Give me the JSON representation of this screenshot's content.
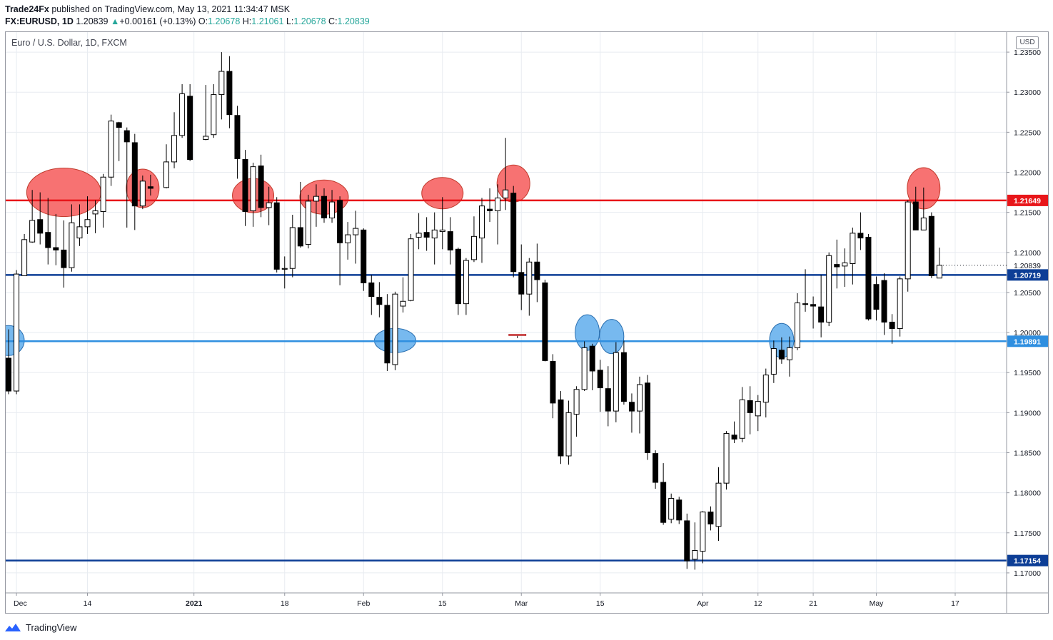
{
  "header": {
    "publisher": "Trade24Fx",
    "published_text": " published on TradingView.com, May 13, 2021 11:34:47 MSK",
    "symbol": "FX:EURUSD, 1D",
    "last": "1.20839",
    "arrow": "▲",
    "change": "+0.00161 (+0.13%)",
    "o_label": "O:",
    "o_value": "1.20678",
    "h_label": "H:",
    "h_value": "1.21061",
    "l_label": "L:",
    "l_value": "1.20678",
    "c_label": "C:",
    "c_value": "1.20839"
  },
  "chart_title": "Euro / U.S. Dollar, 1D, FXCM",
  "currency_badge": "USD",
  "footer": {
    "brand": "TradingView",
    "logo_icon": "tradingview-logo-icon"
  },
  "colors": {
    "bull_body": "#ffffff",
    "bear_body": "#000000",
    "wick": "#000000",
    "resistance_line": "#e8161a",
    "support_line_blue": "#2f8fe0",
    "support_line_navy": "#0d3e96",
    "price_text_up": "#26a69a",
    "grid": "#e8ecf1",
    "red_ellipse": "#f77272",
    "blue_ellipse": "#77b9ef"
  },
  "chart_data": {
    "type": "candlestick",
    "symbol": "EURUSD",
    "timeframe": "1D",
    "ylim": [
      1.1675,
      1.2375
    ],
    "y_ticks": [
      "1.23500",
      "1.23000",
      "1.22500",
      "1.22000",
      "1.21500",
      "1.21000",
      "1.20500",
      "1.20000",
      "1.19500",
      "1.19000",
      "1.18500",
      "1.18000",
      "1.17500",
      "1.17000"
    ],
    "x_ticks": [
      "Dec",
      "14",
      "2021",
      "18",
      "Feb",
      "15",
      "Mar",
      "15",
      "Apr",
      "12",
      "21",
      "May",
      "17"
    ],
    "candles": [
      {
        "date": "2020-11-30",
        "o": 1.1968,
        "h": 1.2004,
        "l": 1.1923,
        "c": 1.1927
      },
      {
        "date": "2020-12-01",
        "o": 1.1927,
        "h": 1.2078,
        "l": 1.1923,
        "c": 1.2073
      },
      {
        "date": "2020-12-02",
        "o": 1.2071,
        "h": 1.2123,
        "l": 1.2071,
        "c": 1.2116
      },
      {
        "date": "2020-12-03",
        "o": 1.2113,
        "h": 1.2178,
        "l": 1.2112,
        "c": 1.214
      },
      {
        "date": "2020-12-04",
        "o": 1.2141,
        "h": 1.2175,
        "l": 1.211,
        "c": 1.2124
      },
      {
        "date": "2020-12-07",
        "o": 1.2125,
        "h": 1.2168,
        "l": 1.2085,
        "c": 1.2106
      },
      {
        "date": "2020-12-08",
        "o": 1.2106,
        "h": 1.2148,
        "l": 1.2084,
        "c": 1.2103
      },
      {
        "date": "2020-12-09",
        "o": 1.2103,
        "h": 1.214,
        "l": 1.2056,
        "c": 1.2081
      },
      {
        "date": "2020-12-10",
        "o": 1.2081,
        "h": 1.216,
        "l": 1.2076,
        "c": 1.2137
      },
      {
        "date": "2020-12-11",
        "o": 1.2118,
        "h": 1.216,
        "l": 1.2108,
        "c": 1.2132
      },
      {
        "date": "2020-12-14",
        "o": 1.2132,
        "h": 1.217,
        "l": 1.2123,
        "c": 1.2141
      },
      {
        "date": "2020-12-15",
        "o": 1.2148,
        "h": 1.2165,
        "l": 1.2124,
        "c": 1.2152
      },
      {
        "date": "2020-12-16",
        "o": 1.2151,
        "h": 1.2198,
        "l": 1.2131,
        "c": 1.2194
      },
      {
        "date": "2020-12-17",
        "o": 1.2194,
        "h": 1.2272,
        "l": 1.2183,
        "c": 1.2264
      },
      {
        "date": "2020-12-18",
        "o": 1.2262,
        "h": 1.2263,
        "l": 1.2214,
        "c": 1.2256
      },
      {
        "date": "2020-12-21",
        "o": 1.2252,
        "h": 1.2256,
        "l": 1.2131,
        "c": 1.2238
      },
      {
        "date": "2020-12-22",
        "o": 1.2237,
        "h": 1.2248,
        "l": 1.2128,
        "c": 1.2158
      },
      {
        "date": "2020-12-23",
        "o": 1.2158,
        "h": 1.2196,
        "l": 1.2154,
        "c": 1.2189
      },
      {
        "date": "2020-12-24",
        "o": 1.2182,
        "h": 1.2197,
        "l": 1.2171,
        "c": 1.218
      },
      {
        "date": "2020-12-28",
        "o": 1.2181,
        "h": 1.2235,
        "l": 1.218,
        "c": 1.2213
      },
      {
        "date": "2020-12-29",
        "o": 1.2213,
        "h": 1.2275,
        "l": 1.2205,
        "c": 1.2246
      },
      {
        "date": "2020-12-30",
        "o": 1.2246,
        "h": 1.231,
        "l": 1.2243,
        "c": 1.2298
      },
      {
        "date": "2020-12-31",
        "o": 1.2295,
        "h": 1.231,
        "l": 1.2214,
        "c": 1.2216
      },
      {
        "date": "2021-01-04",
        "o": 1.2241,
        "h": 1.2309,
        "l": 1.224,
        "c": 1.2245
      },
      {
        "date": "2021-01-05",
        "o": 1.2247,
        "h": 1.231,
        "l": 1.2243,
        "c": 1.2297
      },
      {
        "date": "2021-01-06",
        "o": 1.2297,
        "h": 1.235,
        "l": 1.2266,
        "c": 1.2326
      },
      {
        "date": "2021-01-07",
        "o": 1.2326,
        "h": 1.2345,
        "l": 1.2255,
        "c": 1.2272
      },
      {
        "date": "2021-01-08",
        "o": 1.2271,
        "h": 1.2283,
        "l": 1.2192,
        "c": 1.2217
      },
      {
        "date": "2021-01-11",
        "o": 1.2216,
        "h": 1.2228,
        "l": 1.2133,
        "c": 1.2151
      },
      {
        "date": "2021-01-12",
        "o": 1.2152,
        "h": 1.2212,
        "l": 1.2132,
        "c": 1.2207
      },
      {
        "date": "2021-01-13",
        "o": 1.2208,
        "h": 1.2222,
        "l": 1.2144,
        "c": 1.2156
      },
      {
        "date": "2021-01-14",
        "o": 1.2156,
        "h": 1.2182,
        "l": 1.2134,
        "c": 1.2162
      },
      {
        "date": "2021-01-15",
        "o": 1.2162,
        "h": 1.2169,
        "l": 1.2075,
        "c": 1.2079
      },
      {
        "date": "2021-01-18",
        "o": 1.2079,
        "h": 1.2095,
        "l": 1.2055,
        "c": 1.208
      },
      {
        "date": "2021-01-19",
        "o": 1.208,
        "h": 1.2147,
        "l": 1.2069,
        "c": 1.2131
      },
      {
        "date": "2021-01-20",
        "o": 1.2131,
        "h": 1.2188,
        "l": 1.2106,
        "c": 1.2108
      },
      {
        "date": "2021-01-21",
        "o": 1.211,
        "h": 1.2172,
        "l": 1.2105,
        "c": 1.2164
      },
      {
        "date": "2021-01-22",
        "o": 1.2164,
        "h": 1.2185,
        "l": 1.2132,
        "c": 1.217
      },
      {
        "date": "2021-01-25",
        "o": 1.217,
        "h": 1.218,
        "l": 1.2137,
        "c": 1.2143
      },
      {
        "date": "2021-01-26",
        "o": 1.2143,
        "h": 1.2178,
        "l": 1.2137,
        "c": 1.2163
      },
      {
        "date": "2021-01-27",
        "o": 1.2165,
        "h": 1.217,
        "l": 1.2059,
        "c": 1.2112
      },
      {
        "date": "2021-01-28",
        "o": 1.2112,
        "h": 1.2138,
        "l": 1.2091,
        "c": 1.2122
      },
      {
        "date": "2021-01-29",
        "o": 1.2122,
        "h": 1.2152,
        "l": 1.2086,
        "c": 1.213
      },
      {
        "date": "2021-02-01",
        "o": 1.2128,
        "h": 1.213,
        "l": 1.2052,
        "c": 1.2062
      },
      {
        "date": "2021-02-02",
        "o": 1.2062,
        "h": 1.2072,
        "l": 1.2022,
        "c": 1.2045
      },
      {
        "date": "2021-02-03",
        "o": 1.2044,
        "h": 1.2063,
        "l": 1.2019,
        "c": 1.2035
      },
      {
        "date": "2021-02-04",
        "o": 1.2034,
        "h": 1.2048,
        "l": 1.1952,
        "c": 1.1962
      },
      {
        "date": "2021-02-05",
        "o": 1.196,
        "h": 1.2051,
        "l": 1.1953,
        "c": 1.2048
      },
      {
        "date": "2021-02-08",
        "o": 1.2033,
        "h": 1.2069,
        "l": 1.2025,
        "c": 1.2039
      },
      {
        "date": "2021-02-09",
        "o": 1.204,
        "h": 1.2123,
        "l": 1.2039,
        "c": 1.2117
      },
      {
        "date": "2021-02-10",
        "o": 1.2119,
        "h": 1.2149,
        "l": 1.2104,
        "c": 1.2124
      },
      {
        "date": "2021-02-11",
        "o": 1.2125,
        "h": 1.2144,
        "l": 1.2102,
        "c": 1.2119
      },
      {
        "date": "2021-02-12",
        "o": 1.2118,
        "h": 1.215,
        "l": 1.2085,
        "c": 1.2128
      },
      {
        "date": "2021-02-15",
        "o": 1.2126,
        "h": 1.2169,
        "l": 1.2104,
        "c": 1.2128
      },
      {
        "date": "2021-02-16",
        "o": 1.2126,
        "h": 1.2144,
        "l": 1.2085,
        "c": 1.2103
      },
      {
        "date": "2021-02-17",
        "o": 1.2104,
        "h": 1.2106,
        "l": 1.2022,
        "c": 1.2036
      },
      {
        "date": "2021-02-18",
        "o": 1.2036,
        "h": 1.2093,
        "l": 1.2022,
        "c": 1.209
      },
      {
        "date": "2021-02-19",
        "o": 1.2091,
        "h": 1.2145,
        "l": 1.2088,
        "c": 1.212
      },
      {
        "date": "2021-02-22",
        "o": 1.2118,
        "h": 1.2168,
        "l": 1.2087,
        "c": 1.2158
      },
      {
        "date": "2021-02-23",
        "o": 1.2154,
        "h": 1.218,
        "l": 1.2138,
        "c": 1.2152
      },
      {
        "date": "2021-02-24",
        "o": 1.2152,
        "h": 1.2185,
        "l": 1.211,
        "c": 1.2168
      },
      {
        "date": "2021-02-25",
        "o": 1.2168,
        "h": 1.2243,
        "l": 1.2153,
        "c": 1.2178
      },
      {
        "date": "2021-02-26",
        "o": 1.2174,
        "h": 1.2183,
        "l": 1.2069,
        "c": 1.2076
      },
      {
        "date": "2021-02-28",
        "o": 1.1997,
        "h": 1.1997,
        "l": 1.1993,
        "c": 1.1995
      },
      {
        "date": "2021-03-01",
        "o": 1.2075,
        "h": 1.211,
        "l": 1.2028,
        "c": 1.2048
      },
      {
        "date": "2021-03-02",
        "o": 1.2048,
        "h": 1.2093,
        "l": 1.2021,
        "c": 1.2088
      },
      {
        "date": "2021-03-03",
        "o": 1.2088,
        "h": 1.2111,
        "l": 1.2038,
        "c": 1.2066
      },
      {
        "date": "2021-03-04",
        "o": 1.2062,
        "h": 1.2066,
        "l": 1.1964,
        "c": 1.1965
      },
      {
        "date": "2021-03-05",
        "o": 1.1964,
        "h": 1.1973,
        "l": 1.1893,
        "c": 1.1912
      },
      {
        "date": "2021-03-08",
        "o": 1.1916,
        "h": 1.1927,
        "l": 1.1836,
        "c": 1.1846
      },
      {
        "date": "2021-03-09",
        "o": 1.1846,
        "h": 1.1915,
        "l": 1.1835,
        "c": 1.19
      },
      {
        "date": "2021-03-10",
        "o": 1.1898,
        "h": 1.1933,
        "l": 1.187,
        "c": 1.1929
      },
      {
        "date": "2021-03-11",
        "o": 1.1929,
        "h": 1.1989,
        "l": 1.1927,
        "c": 1.1981
      },
      {
        "date": "2021-03-12",
        "o": 1.1983,
        "h": 1.1986,
        "l": 1.1928,
        "c": 1.1952
      },
      {
        "date": "2021-03-15",
        "o": 1.1953,
        "h": 1.1966,
        "l": 1.1901,
        "c": 1.1931
      },
      {
        "date": "2021-03-16",
        "o": 1.193,
        "h": 1.1958,
        "l": 1.1883,
        "c": 1.1902
      },
      {
        "date": "2021-03-17",
        "o": 1.1902,
        "h": 1.1988,
        "l": 1.1888,
        "c": 1.1975
      },
      {
        "date": "2021-03-18",
        "o": 1.1975,
        "h": 1.199,
        "l": 1.191,
        "c": 1.1914
      },
      {
        "date": "2021-03-19",
        "o": 1.1913,
        "h": 1.1924,
        "l": 1.1875,
        "c": 1.1902
      },
      {
        "date": "2021-03-22",
        "o": 1.1902,
        "h": 1.1945,
        "l": 1.1874,
        "c": 1.1935
      },
      {
        "date": "2021-03-23",
        "o": 1.1937,
        "h": 1.1947,
        "l": 1.1841,
        "c": 1.185
      },
      {
        "date": "2021-03-24",
        "o": 1.1849,
        "h": 1.1853,
        "l": 1.1805,
        "c": 1.1813
      },
      {
        "date": "2021-03-25",
        "o": 1.1813,
        "h": 1.1837,
        "l": 1.176,
        "c": 1.1763
      },
      {
        "date": "2021-03-26",
        "o": 1.1767,
        "h": 1.1799,
        "l": 1.1762,
        "c": 1.1793
      },
      {
        "date": "2021-03-29",
        "o": 1.1791,
        "h": 1.1795,
        "l": 1.1761,
        "c": 1.1766
      },
      {
        "date": "2021-03-30",
        "o": 1.1765,
        "h": 1.1774,
        "l": 1.1705,
        "c": 1.1715
      },
      {
        "date": "2021-03-31",
        "o": 1.1717,
        "h": 1.1763,
        "l": 1.1704,
        "c": 1.1728
      },
      {
        "date": "2021-04-01",
        "o": 1.1727,
        "h": 1.1777,
        "l": 1.1712,
        "c": 1.1776
      },
      {
        "date": "2021-04-02",
        "o": 1.1776,
        "h": 1.1783,
        "l": 1.1753,
        "c": 1.1761
      },
      {
        "date": "2021-04-05",
        "o": 1.1758,
        "h": 1.1832,
        "l": 1.174,
        "c": 1.1812
      },
      {
        "date": "2021-04-06",
        "o": 1.1812,
        "h": 1.1877,
        "l": 1.1804,
        "c": 1.1874
      },
      {
        "date": "2021-04-07",
        "o": 1.1872,
        "h": 1.1889,
        "l": 1.1862,
        "c": 1.1867
      },
      {
        "date": "2021-04-08",
        "o": 1.1868,
        "h": 1.1932,
        "l": 1.1863,
        "c": 1.1916
      },
      {
        "date": "2021-04-09",
        "o": 1.1915,
        "h": 1.1933,
        "l": 1.1873,
        "c": 1.19
      },
      {
        "date": "2021-04-12",
        "o": 1.1896,
        "h": 1.1922,
        "l": 1.1877,
        "c": 1.1914
      },
      {
        "date": "2021-04-13",
        "o": 1.1913,
        "h": 1.1955,
        "l": 1.1894,
        "c": 1.1947
      },
      {
        "date": "2021-04-14",
        "o": 1.1948,
        "h": 1.199,
        "l": 1.1937,
        "c": 1.198
      },
      {
        "date": "2021-04-15",
        "o": 1.1978,
        "h": 1.1994,
        "l": 1.1961,
        "c": 1.1967
      },
      {
        "date": "2021-04-16",
        "o": 1.1966,
        "h": 1.1995,
        "l": 1.1945,
        "c": 1.1981
      },
      {
        "date": "2021-04-19",
        "o": 1.1981,
        "h": 1.2049,
        "l": 1.1978,
        "c": 1.2037
      },
      {
        "date": "2021-04-20",
        "o": 1.2036,
        "h": 1.2079,
        "l": 1.2026,
        "c": 1.2035
      },
      {
        "date": "2021-04-21",
        "o": 1.2035,
        "h": 1.2045,
        "l": 1.2005,
        "c": 1.2033
      },
      {
        "date": "2021-04-22",
        "o": 1.2032,
        "h": 1.2072,
        "l": 1.1994,
        "c": 1.2013
      },
      {
        "date": "2021-04-23",
        "o": 1.2013,
        "h": 1.21,
        "l": 1.2008,
        "c": 1.2096
      },
      {
        "date": "2021-04-26",
        "o": 1.2085,
        "h": 1.2116,
        "l": 1.2055,
        "c": 1.2082
      },
      {
        "date": "2021-04-27",
        "o": 1.2083,
        "h": 1.2105,
        "l": 1.2057,
        "c": 1.2087
      },
      {
        "date": "2021-04-28",
        "o": 1.2086,
        "h": 1.2131,
        "l": 1.206,
        "c": 1.2124
      },
      {
        "date": "2021-04-29",
        "o": 1.2124,
        "h": 1.215,
        "l": 1.2103,
        "c": 1.2118
      },
      {
        "date": "2021-04-30",
        "o": 1.2119,
        "h": 1.2123,
        "l": 1.2015,
        "c": 1.2017
      },
      {
        "date": "2021-05-03",
        "o": 1.206,
        "h": 1.207,
        "l": 1.2015,
        "c": 1.2029
      },
      {
        "date": "2021-05-04",
        "o": 1.2065,
        "h": 1.2074,
        "l": 1.1997,
        "c": 1.2013
      },
      {
        "date": "2021-05-05",
        "o": 1.2013,
        "h": 1.2023,
        "l": 1.1986,
        "c": 1.2005
      },
      {
        "date": "2021-05-06",
        "o": 1.2005,
        "h": 1.207,
        "l": 1.1995,
        "c": 1.2067
      },
      {
        "date": "2021-05-07",
        "o": 1.2067,
        "h": 1.2165,
        "l": 1.2051,
        "c": 1.2163
      },
      {
        "date": "2021-05-10",
        "o": 1.2163,
        "h": 1.2182,
        "l": 1.2128,
        "c": 1.2128
      },
      {
        "date": "2021-05-11",
        "o": 1.2128,
        "h": 1.2181,
        "l": 1.2128,
        "c": 1.2143
      },
      {
        "date": "2021-05-12",
        "o": 1.2145,
        "h": 1.215,
        "l": 1.2068,
        "c": 1.2071
      },
      {
        "date": "2021-05-13",
        "o": 1.2068,
        "h": 1.2106,
        "l": 1.2068,
        "c": 1.2084
      }
    ],
    "horizontal_levels": [
      {
        "value": 1.21649,
        "label": "1.21649",
        "color": "#e8161a"
      },
      {
        "value": 1.20719,
        "label": "1.20719",
        "color": "#0d3e96"
      },
      {
        "value": 1.19891,
        "label": "1.19891",
        "color": "#2f8fe0"
      },
      {
        "value": 1.17154,
        "label": "1.17154",
        "color": "#0d3e96"
      }
    ],
    "last_price_label": "1.20839",
    "last_price": 1.20839,
    "annotations": {
      "red_ellipses": [
        {
          "date": "2020-12-09",
          "price": 1.2175
        },
        {
          "date": "2020-12-23",
          "price": 1.218
        },
        {
          "date": "2021-01-12",
          "price": 1.2171
        },
        {
          "date": "2021-01-25",
          "price": 1.2169
        },
        {
          "date": "2021-02-15",
          "price": 1.2174
        },
        {
          "date": "2021-02-26",
          "price": 1.2186
        },
        {
          "date": "2021-05-11",
          "price": 1.218
        }
      ],
      "blue_ellipses": [
        {
          "date": "2020-11-30",
          "price": 1.199
        },
        {
          "date": "2021-02-05",
          "price": 1.199
        },
        {
          "date": "2021-03-11",
          "price": 1.2
        },
        {
          "date": "2021-03-17",
          "price": 1.1995
        },
        {
          "date": "2021-04-15",
          "price": 1.199
        }
      ]
    }
  }
}
